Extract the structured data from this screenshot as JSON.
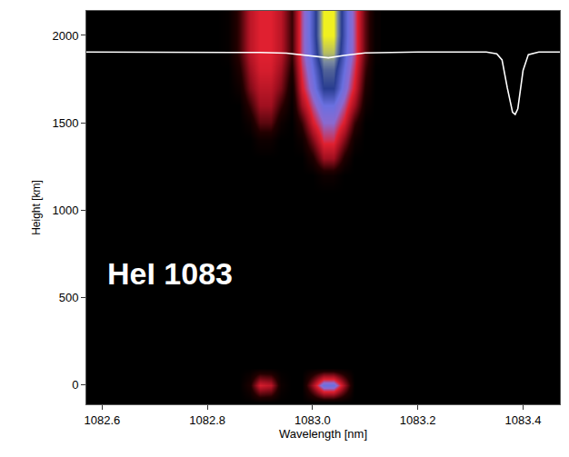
{
  "chart_data": {
    "type": "heatmap",
    "annotation": "HeI 1083",
    "x_label": "Wavelength [nm]",
    "y_label": "Height [km]",
    "xlim": [
      1082.57,
      1083.47
    ],
    "ylim": [
      -110,
      2140
    ],
    "xticks": [
      1082.6,
      1082.8,
      {
        "value": 1083,
        "label": "1083.0"
      },
      1083.2,
      1083.4
    ],
    "yticks": [
      0,
      500,
      1000,
      1500,
      2000
    ],
    "grid": false,
    "zlim": [
      0,
      1
    ],
    "x": [
      1082.82,
      1082.84,
      1082.86,
      1082.88,
      1082.9,
      1082.92,
      1082.94,
      1082.96,
      1082.98,
      1083.0,
      1083.02,
      1083.04,
      1083.06,
      1083.08,
      1083.1,
      1083.12
    ],
    "y": [
      -100,
      0,
      100,
      200,
      300,
      400,
      500,
      600,
      700,
      800,
      900,
      1000,
      1100,
      1200,
      1300,
      1400,
      1500,
      1600,
      1700,
      1800,
      1900,
      2000,
      2100,
      2200
    ],
    "z": [
      [
        0,
        0,
        0,
        0,
        0,
        0,
        0,
        0,
        0,
        0,
        0,
        0,
        0,
        0,
        0,
        0
      ],
      [
        0,
        0,
        0,
        0.1,
        0.4,
        0.35,
        0.05,
        0,
        0,
        0.3,
        0.65,
        0.65,
        0.3,
        0,
        0,
        0
      ],
      [
        0,
        0,
        0,
        0,
        0,
        0,
        0,
        0,
        0,
        0,
        0,
        0,
        0,
        0,
        0,
        0
      ],
      [
        0,
        0,
        0,
        0,
        0,
        0,
        0,
        0,
        0,
        0,
        0,
        0,
        0,
        0,
        0,
        0
      ],
      [
        0,
        0,
        0,
        0,
        0,
        0,
        0,
        0,
        0,
        0,
        0,
        0,
        0,
        0,
        0,
        0
      ],
      [
        0,
        0,
        0,
        0,
        0,
        0,
        0,
        0,
        0,
        0,
        0,
        0,
        0,
        0,
        0,
        0
      ],
      [
        0,
        0,
        0,
        0,
        0,
        0,
        0,
        0,
        0,
        0,
        0,
        0,
        0,
        0,
        0,
        0
      ],
      [
        0,
        0,
        0,
        0,
        0,
        0,
        0,
        0,
        0,
        0,
        0,
        0,
        0,
        0,
        0,
        0
      ],
      [
        0,
        0,
        0,
        0,
        0,
        0,
        0,
        0,
        0,
        0,
        0,
        0,
        0,
        0,
        0,
        0
      ],
      [
        0,
        0,
        0,
        0,
        0,
        0,
        0,
        0,
        0,
        0,
        0,
        0,
        0,
        0,
        0,
        0
      ],
      [
        0,
        0,
        0,
        0,
        0,
        0,
        0,
        0,
        0,
        0,
        0,
        0,
        0,
        0,
        0,
        0
      ],
      [
        0,
        0,
        0,
        0,
        0,
        0,
        0,
        0,
        0,
        0,
        0,
        0,
        0,
        0,
        0,
        0
      ],
      [
        0,
        0,
        0,
        0,
        0,
        0,
        0,
        0,
        0,
        0,
        0,
        0,
        0,
        0,
        0,
        0
      ],
      [
        0,
        0,
        0,
        0,
        0,
        0,
        0,
        0,
        0,
        0,
        0.05,
        0.05,
        0,
        0,
        0,
        0
      ],
      [
        0,
        0,
        0,
        0,
        0,
        0,
        0,
        0,
        0,
        0.1,
        0.3,
        0.3,
        0.1,
        0,
        0,
        0
      ],
      [
        0,
        0,
        0,
        0,
        0.05,
        0.05,
        0,
        0,
        0.05,
        0.25,
        0.45,
        0.45,
        0.25,
        0.05,
        0,
        0
      ],
      [
        0,
        0,
        0,
        0.05,
        0.2,
        0.2,
        0.05,
        0,
        0.15,
        0.4,
        0.55,
        0.55,
        0.4,
        0.15,
        0,
        0
      ],
      [
        0,
        0,
        0,
        0.15,
        0.3,
        0.3,
        0.15,
        0.02,
        0.3,
        0.5,
        0.65,
        0.65,
        0.5,
        0.3,
        0.05,
        0
      ],
      [
        0,
        0,
        0.05,
        0.25,
        0.35,
        0.35,
        0.25,
        0.05,
        0.4,
        0.6,
        0.8,
        0.8,
        0.6,
        0.4,
        0.1,
        0
      ],
      [
        0,
        0,
        0.1,
        0.3,
        0.4,
        0.4,
        0.3,
        0.1,
        0.45,
        0.65,
        0.85,
        0.85,
        0.65,
        0.45,
        0.15,
        0
      ],
      [
        0,
        0.02,
        0.15,
        0.35,
        0.42,
        0.42,
        0.35,
        0.15,
        0.5,
        0.7,
        0.95,
        0.95,
        0.7,
        0.5,
        0.2,
        0.02
      ],
      [
        0,
        0.02,
        0.15,
        0.35,
        0.42,
        0.42,
        0.35,
        0.15,
        0.5,
        0.72,
        1,
        1,
        0.72,
        0.5,
        0.2,
        0.02
      ],
      [
        0,
        0.02,
        0.15,
        0.35,
        0.42,
        0.42,
        0.35,
        0.15,
        0.5,
        0.72,
        1,
        1,
        0.72,
        0.5,
        0.2,
        0.02
      ],
      [
        0,
        0.02,
        0.15,
        0.35,
        0.42,
        0.42,
        0.35,
        0.15,
        0.5,
        0.72,
        1,
        1,
        0.72,
        0.5,
        0.2,
        0.02
      ]
    ],
    "series": [
      {
        "type": "line",
        "color": "#ffffff",
        "x": [
          1082.57,
          1082.85,
          1082.9,
          1082.95,
          1083.0,
          1083.03,
          1083.06,
          1083.1,
          1083.2,
          1083.33,
          1083.35,
          1083.36,
          1083.37,
          1083.38,
          1083.385,
          1083.39,
          1083.4,
          1083.41,
          1083.43,
          1083.47
        ],
        "values": [
          1905,
          1905,
          1902,
          1898,
          1880,
          1872,
          1885,
          1900,
          1905,
          1905,
          1895,
          1860,
          1700,
          1560,
          1548,
          1580,
          1800,
          1890,
          1905,
          1905
        ]
      }
    ]
  }
}
